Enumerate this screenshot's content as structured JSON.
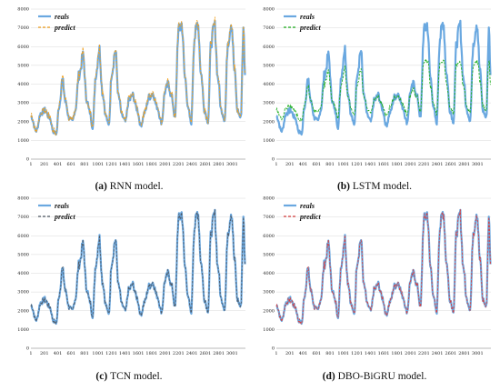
{
  "panels": [
    {
      "letter": "(a)",
      "caption_text": "RNN model.",
      "predict_color": "#f0a020",
      "predict_style": "dashed-orange",
      "deviation": "rnn"
    },
    {
      "letter": "(b)",
      "caption_text": "LSTM model.",
      "predict_color": "#20b020",
      "predict_style": "dashed-green",
      "deviation": "lstm"
    },
    {
      "letter": "(c)",
      "caption_text": "TCN model.",
      "predict_color": "#505a66",
      "predict_style": "dashed-dark",
      "deviation": "tcn"
    },
    {
      "letter": "(d)",
      "caption_text": "DBO-BiGRU model.",
      "predict_color": "#d84040",
      "predict_style": "dashed-red",
      "deviation": "dbo"
    }
  ],
  "reals_color": "#6aa8e0",
  "chart_data": {
    "type": "line",
    "series": [
      {
        "name": "reals",
        "values_note": "shared across all four panels"
      },
      {
        "name": "predict"
      }
    ],
    "x_ticks": [
      "1",
      "201",
      "401",
      "601",
      "801",
      "1001",
      "1201",
      "1401",
      "1601",
      "1801",
      "2001",
      "2201",
      "2401",
      "2601",
      "2801",
      "3001"
    ],
    "y_ticks": [
      "0",
      "1000",
      "2000",
      "3000",
      "4000",
      "5000",
      "6000",
      "7000",
      "8000"
    ],
    "ylim": [
      0,
      8000
    ],
    "xlim": [
      1,
      3200
    ],
    "legend_labels": [
      "reals",
      "predict"
    ],
    "reals_key_points": [
      [
        1,
        2300
      ],
      [
        80,
        1500
      ],
      [
        150,
        2450
      ],
      [
        210,
        2600
      ],
      [
        280,
        2200
      ],
      [
        340,
        1450
      ],
      [
        380,
        1350
      ],
      [
        420,
        2800
      ],
      [
        470,
        4200
      ],
      [
        520,
        3000
      ],
      [
        570,
        2200
      ],
      [
        620,
        2000
      ],
      [
        660,
        2600
      ],
      [
        720,
        4500
      ],
      [
        780,
        5500
      ],
      [
        830,
        3200
      ],
      [
        880,
        2500
      ],
      [
        920,
        1700
      ],
      [
        970,
        4500
      ],
      [
        1020,
        5900
      ],
      [
        1070,
        3500
      ],
      [
        1120,
        2300
      ],
      [
        1160,
        1800
      ],
      [
        1210,
        4700
      ],
      [
        1260,
        5800
      ],
      [
        1310,
        3300
      ],
      [
        1360,
        2300
      ],
      [
        1410,
        2000
      ],
      [
        1460,
        3100
      ],
      [
        1520,
        3400
      ],
      [
        1580,
        2700
      ],
      [
        1640,
        1800
      ],
      [
        1700,
        2500
      ],
      [
        1760,
        3300
      ],
      [
        1820,
        3500
      ],
      [
        1880,
        2800
      ],
      [
        1950,
        1950
      ],
      [
        2000,
        3600
      ],
      [
        2050,
        4000
      ],
      [
        2100,
        3300
      ],
      [
        2150,
        2200
      ],
      [
        2200,
        6800
      ],
      [
        2250,
        7200
      ],
      [
        2300,
        4300
      ],
      [
        2350,
        2600
      ],
      [
        2390,
        1900
      ],
      [
        2440,
        6500
      ],
      [
        2490,
        7300
      ],
      [
        2540,
        4500
      ],
      [
        2590,
        2600
      ],
      [
        2640,
        2000
      ],
      [
        2690,
        6300
      ],
      [
        2740,
        7100
      ],
      [
        2790,
        4300
      ],
      [
        2840,
        2600
      ],
      [
        2890,
        2100
      ],
      [
        2940,
        6300
      ],
      [
        2990,
        7300
      ],
      [
        3040,
        4600
      ],
      [
        3080,
        2600
      ],
      [
        3130,
        2200
      ],
      [
        3170,
        6800
      ],
      [
        3200,
        4000
      ]
    ]
  }
}
